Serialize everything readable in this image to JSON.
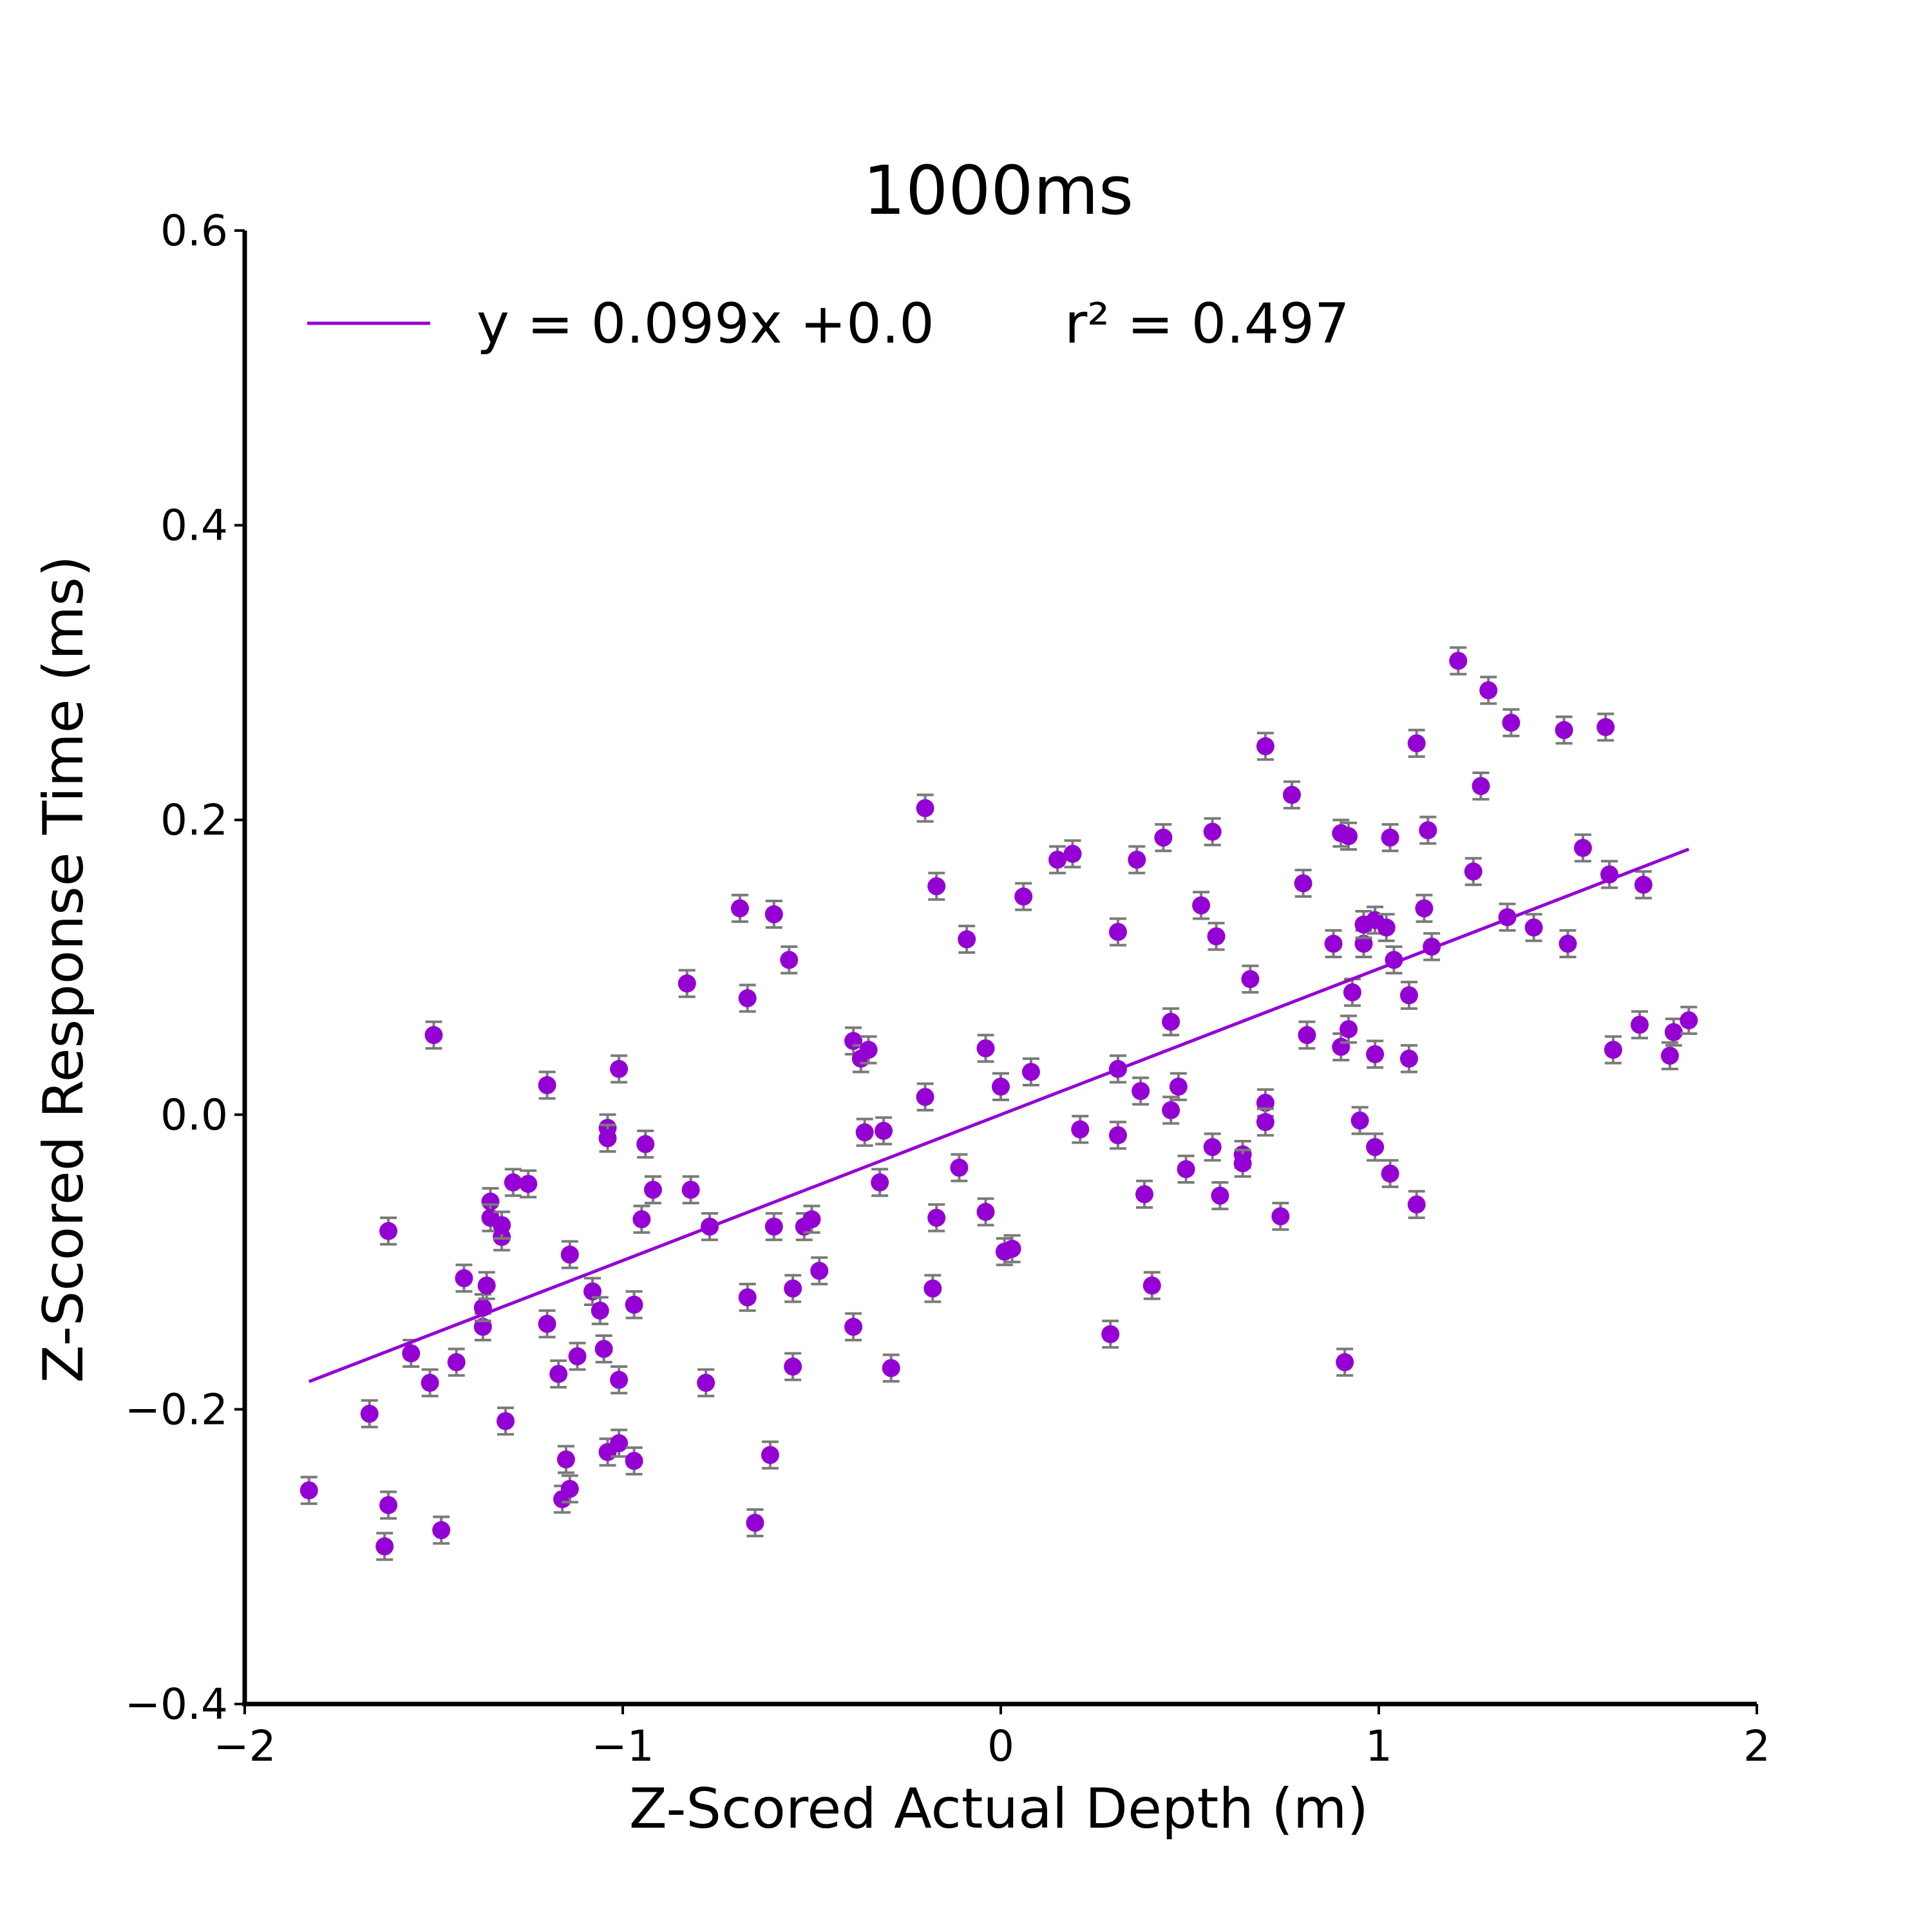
{
  "chart_data": {
    "type": "scatter",
    "title": "1000ms",
    "xlabel": "Z-Scored Actual Depth (m)",
    "ylabel": "Z-Scored Response Time (ms)",
    "xlim": [
      -2,
      2
    ],
    "ylim": [
      -0.4,
      0.6
    ],
    "x_ticks": [
      -2,
      -1,
      0,
      1,
      2
    ],
    "x_tick_labels": [
      "−2",
      "−1",
      "0",
      "1",
      "2"
    ],
    "y_ticks": [
      -0.4,
      -0.2,
      0.0,
      0.2,
      0.4,
      0.6
    ],
    "y_tick_labels": [
      "−0.4",
      "−0.2",
      "0.0",
      "0.2",
      "0.4",
      "0.6"
    ],
    "grid": false,
    "legend_position": "top-left",
    "colors": {
      "points": "#9400D3",
      "fit_line": "#9400D3",
      "error_bars": "#7a7a7a",
      "axes": "#000000"
    },
    "error_bar_halfwidth": 0.009,
    "fit": {
      "label": "y = 0.099x +0.0",
      "r2_label": "r² = 0.497",
      "slope": 0.099,
      "intercept": 0.0,
      "x_range": [
        -1.83,
        1.82
      ]
    },
    "series": [
      {
        "points": [
          [
            -1.83,
            -0.255
          ],
          [
            -1.67,
            -0.203
          ],
          [
            -1.63,
            -0.293
          ],
          [
            -1.62,
            -0.265
          ],
          [
            -1.62,
            -0.079
          ],
          [
            -1.56,
            -0.162
          ],
          [
            -1.51,
            -0.182
          ],
          [
            -1.5,
            0.054
          ],
          [
            -1.48,
            -0.282
          ],
          [
            -1.44,
            -0.168
          ],
          [
            -1.42,
            -0.111
          ],
          [
            -1.37,
            -0.144
          ],
          [
            -1.37,
            -0.131
          ],
          [
            -1.36,
            -0.116
          ],
          [
            -1.35,
            -0.059
          ],
          [
            -1.35,
            -0.07
          ],
          [
            -1.32,
            -0.083
          ],
          [
            -1.32,
            -0.075
          ],
          [
            -1.31,
            -0.208
          ],
          [
            -1.29,
            -0.046
          ],
          [
            -1.25,
            -0.047
          ],
          [
            -1.2,
            0.02
          ],
          [
            -1.2,
            -0.142
          ],
          [
            -1.17,
            -0.176
          ],
          [
            -1.16,
            -0.261
          ],
          [
            -1.15,
            -0.234
          ],
          [
            -1.14,
            -0.254
          ],
          [
            -1.14,
            -0.095
          ],
          [
            -1.12,
            -0.164
          ],
          [
            -1.08,
            -0.12
          ],
          [
            -1.06,
            -0.133
          ],
          [
            -1.05,
            -0.159
          ],
          [
            -1.04,
            -0.229
          ],
          [
            -1.04,
            -0.009
          ],
          [
            -1.04,
            -0.016
          ],
          [
            -1.01,
            -0.18
          ],
          [
            -1.01,
            -0.223
          ],
          [
            -1.01,
            0.031
          ],
          [
            -0.97,
            -0.129
          ],
          [
            -0.97,
            -0.235
          ],
          [
            -0.95,
            -0.071
          ],
          [
            -0.94,
            -0.02
          ],
          [
            -0.92,
            -0.051
          ],
          [
            -0.83,
            0.089
          ],
          [
            -0.82,
            -0.051
          ],
          [
            -0.78,
            -0.182
          ],
          [
            -0.77,
            -0.076
          ],
          [
            -0.69,
            0.14
          ],
          [
            -0.67,
            0.079
          ],
          [
            -0.67,
            -0.124
          ],
          [
            -0.65,
            -0.277
          ],
          [
            -0.61,
            -0.231
          ],
          [
            -0.6,
            0.136
          ],
          [
            -0.6,
            -0.076
          ],
          [
            -0.56,
            0.105
          ],
          [
            -0.55,
            -0.171
          ],
          [
            -0.55,
            -0.118
          ],
          [
            -0.52,
            -0.076
          ],
          [
            -0.5,
            -0.071
          ],
          [
            -0.48,
            -0.106
          ],
          [
            -0.39,
            0.05
          ],
          [
            -0.39,
            -0.144
          ],
          [
            -0.37,
            0.038
          ],
          [
            -0.36,
            -0.012
          ],
          [
            -0.35,
            0.044
          ],
          [
            -0.32,
            -0.046
          ],
          [
            -0.31,
            -0.011
          ],
          [
            -0.29,
            -0.172
          ],
          [
            -0.2,
            0.208
          ],
          [
            -0.2,
            0.012
          ],
          [
            -0.18,
            -0.118
          ],
          [
            -0.17,
            0.155
          ],
          [
            -0.17,
            -0.07
          ],
          [
            -0.11,
            -0.036
          ],
          [
            -0.09,
            0.119
          ],
          [
            -0.04,
            0.045
          ],
          [
            -0.04,
            -0.066
          ],
          [
            0.0,
            0.019
          ],
          [
            0.01,
            -0.093
          ],
          [
            0.03,
            -0.091
          ],
          [
            0.06,
            0.148
          ],
          [
            0.08,
            0.029
          ],
          [
            0.15,
            0.173
          ],
          [
            0.19,
            0.177
          ],
          [
            0.21,
            -0.01
          ],
          [
            0.29,
            -0.149
          ],
          [
            0.31,
            0.124
          ],
          [
            0.31,
            0.031
          ],
          [
            0.31,
            -0.014
          ],
          [
            0.36,
            0.173
          ],
          [
            0.37,
            0.016
          ],
          [
            0.38,
            -0.054
          ],
          [
            0.4,
            -0.116
          ],
          [
            0.43,
            0.188
          ],
          [
            0.45,
            0.063
          ],
          [
            0.45,
            0.003
          ],
          [
            0.47,
            0.019
          ],
          [
            0.49,
            -0.037
          ],
          [
            0.53,
            0.142
          ],
          [
            0.56,
            0.192
          ],
          [
            0.56,
            -0.022
          ],
          [
            0.57,
            0.121
          ],
          [
            0.58,
            -0.055
          ],
          [
            0.64,
            -0.027
          ],
          [
            0.64,
            -0.033
          ],
          [
            0.66,
            0.092
          ],
          [
            0.7,
            0.25
          ],
          [
            0.7,
            0.008
          ],
          [
            0.7,
            -0.005
          ],
          [
            0.74,
            -0.069
          ],
          [
            0.77,
            0.217
          ],
          [
            0.8,
            0.157
          ],
          [
            0.81,
            0.054
          ],
          [
            0.88,
            0.116
          ],
          [
            0.9,
            0.191
          ],
          [
            0.9,
            0.046
          ],
          [
            0.91,
            -0.168
          ],
          [
            0.92,
            0.189
          ],
          [
            0.92,
            0.058
          ],
          [
            0.93,
            0.083
          ],
          [
            0.95,
            -0.004
          ],
          [
            0.96,
            0.116
          ],
          [
            0.96,
            0.129
          ],
          [
            0.99,
            -0.022
          ],
          [
            0.99,
            0.132
          ],
          [
            0.99,
            0.041
          ],
          [
            1.02,
            0.127
          ],
          [
            1.03,
            0.188
          ],
          [
            1.03,
            -0.04
          ],
          [
            1.04,
            0.105
          ],
          [
            1.08,
            0.081
          ],
          [
            1.08,
            0.038
          ],
          [
            1.1,
            0.252
          ],
          [
            1.1,
            -0.061
          ],
          [
            1.12,
            0.14
          ],
          [
            1.13,
            0.193
          ],
          [
            1.14,
            0.114
          ],
          [
            1.21,
            0.308
          ],
          [
            1.25,
            0.165
          ],
          [
            1.27,
            0.223
          ],
          [
            1.29,
            0.288
          ],
          [
            1.34,
            0.134
          ],
          [
            1.35,
            0.266
          ],
          [
            1.41,
            0.127
          ],
          [
            1.49,
            0.261
          ],
          [
            1.5,
            0.116
          ],
          [
            1.6,
            0.263
          ],
          [
            1.61,
            0.163
          ],
          [
            1.62,
            0.044
          ],
          [
            1.54,
            0.181
          ],
          [
            1.69,
            0.061
          ],
          [
            1.7,
            0.156
          ],
          [
            1.77,
            0.04
          ],
          [
            1.78,
            0.056
          ],
          [
            1.82,
            0.064
          ]
        ]
      }
    ]
  }
}
